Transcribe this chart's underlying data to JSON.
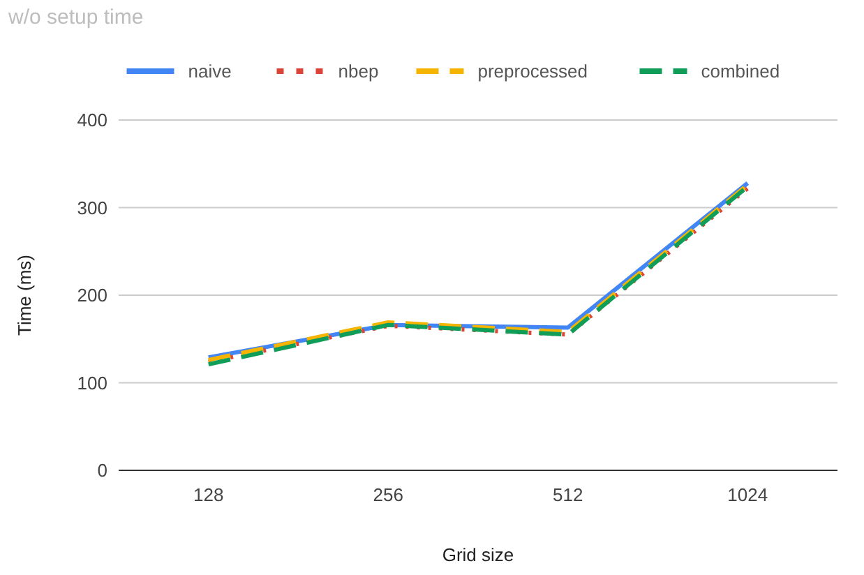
{
  "chart_data": {
    "type": "line",
    "title": "w/o setup time",
    "xlabel": "Grid size",
    "ylabel": "Time (ms)",
    "categories": [
      "128",
      "256",
      "512",
      "1024"
    ],
    "series": [
      {
        "name": "naive",
        "color": "#4285f4",
        "line_style": "solid",
        "values": [
          129,
          166,
          163,
          328
        ]
      },
      {
        "name": "nbep",
        "color": "#db4437",
        "line_style": "dotted",
        "values": [
          124,
          165,
          155,
          322
        ]
      },
      {
        "name": "preprocessed",
        "color": "#f4b400",
        "line_style": "dashed",
        "values": [
          126,
          169,
          158,
          326
        ]
      },
      {
        "name": "combined",
        "color": "#0f9d58",
        "line_style": "dashed",
        "values": [
          121,
          166,
          155,
          324
        ]
      }
    ],
    "ylim": [
      0,
      400
    ],
    "yticks": [
      0,
      100,
      200,
      300,
      400
    ],
    "grid": "y",
    "legend": "top",
    "marker": "none"
  }
}
